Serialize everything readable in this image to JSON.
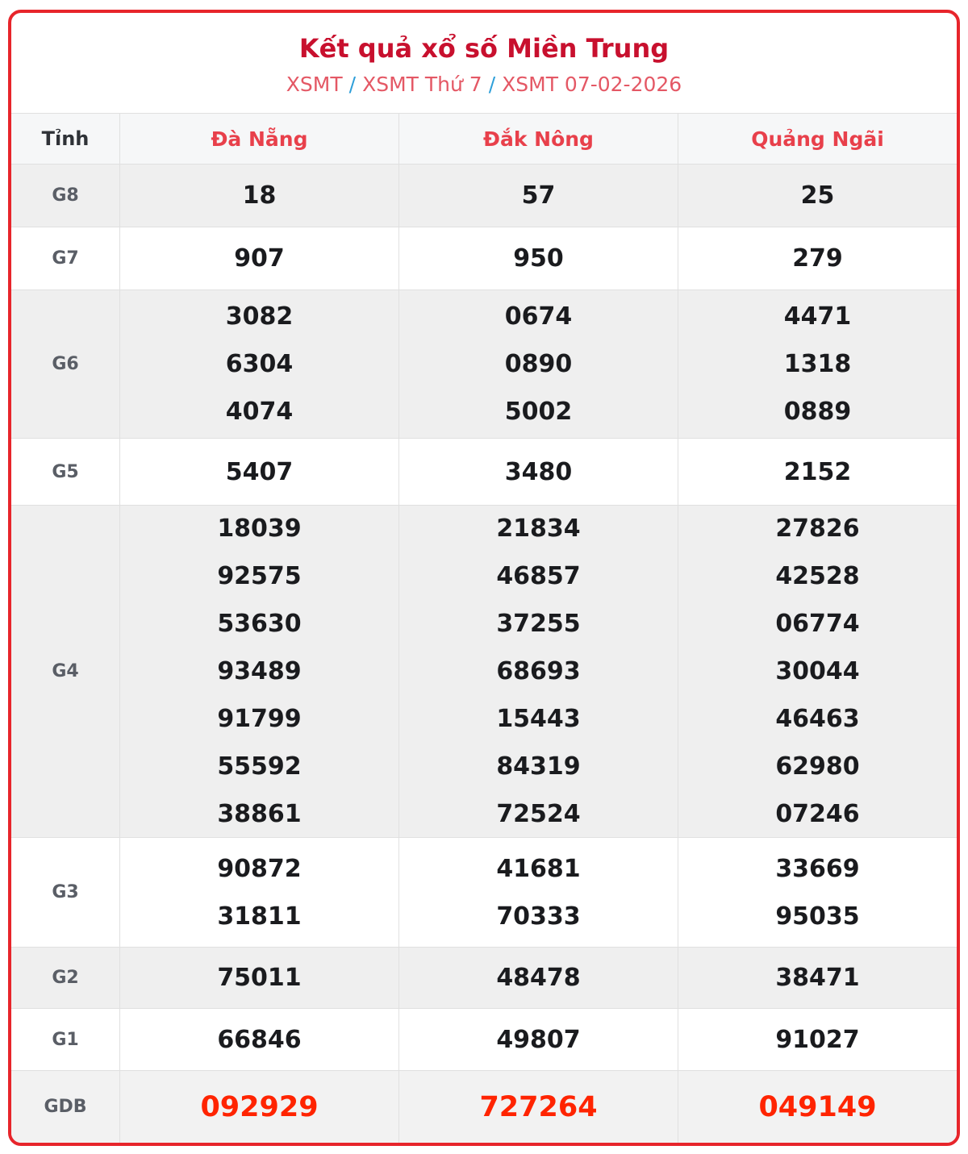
{
  "page": {
    "title": "Kết quả xổ số Miền Trung"
  },
  "breadcrumb": {
    "separator": "/",
    "items": [
      "XSMT",
      "XSMT Thứ 7",
      "XSMT 07-02-2026"
    ]
  },
  "colors": {
    "card_border": "#e7252b",
    "title": "#c8102e",
    "breadcrumb_link": "#e45865",
    "breadcrumb_separator": "#2e9fd9",
    "province_header": "#e8404b",
    "corner_label": "#2f3237",
    "prize_label": "#5a5e66",
    "number": "#1a1b1e",
    "jackpot_number": "#ff2400",
    "row_shade": "#efefef",
    "header_bg": "#f6f7f8",
    "gdb_bg": "#f2f2f2",
    "grid_line": "#e0e0e0"
  },
  "table": {
    "corner_label": "Tỉnh",
    "provinces": [
      "Đà Nẵng",
      "Đắk Nông",
      "Quảng Ngãi"
    ],
    "rows": [
      {
        "label": "G8",
        "cells": [
          [
            "18"
          ],
          [
            "57"
          ],
          [
            "25"
          ]
        ]
      },
      {
        "label": "G7",
        "cells": [
          [
            "907"
          ],
          [
            "950"
          ],
          [
            "279"
          ]
        ]
      },
      {
        "label": "G6",
        "cells": [
          [
            "3082",
            "6304",
            "4074"
          ],
          [
            "0674",
            "0890",
            "5002"
          ],
          [
            "4471",
            "1318",
            "0889"
          ]
        ]
      },
      {
        "label": "G5",
        "cells": [
          [
            "5407"
          ],
          [
            "3480"
          ],
          [
            "2152"
          ]
        ]
      },
      {
        "label": "G4",
        "cells": [
          [
            "18039",
            "92575",
            "53630",
            "93489",
            "91799",
            "55592",
            "38861"
          ],
          [
            "21834",
            "46857",
            "37255",
            "68693",
            "15443",
            "84319",
            "72524"
          ],
          [
            "27826",
            "42528",
            "06774",
            "30044",
            "46463",
            "62980",
            "07246"
          ]
        ]
      },
      {
        "label": "G3",
        "cells": [
          [
            "90872",
            "31811"
          ],
          [
            "41681",
            "70333"
          ],
          [
            "33669",
            "95035"
          ]
        ]
      },
      {
        "label": "G2",
        "cells": [
          [
            "75011"
          ],
          [
            "48478"
          ],
          [
            "38471"
          ]
        ]
      },
      {
        "label": "G1",
        "cells": [
          [
            "66846"
          ],
          [
            "49807"
          ],
          [
            "91027"
          ]
        ]
      },
      {
        "label": "GDB",
        "cells": [
          [
            "092929"
          ],
          [
            "727264"
          ],
          [
            "049149"
          ]
        ]
      }
    ]
  }
}
